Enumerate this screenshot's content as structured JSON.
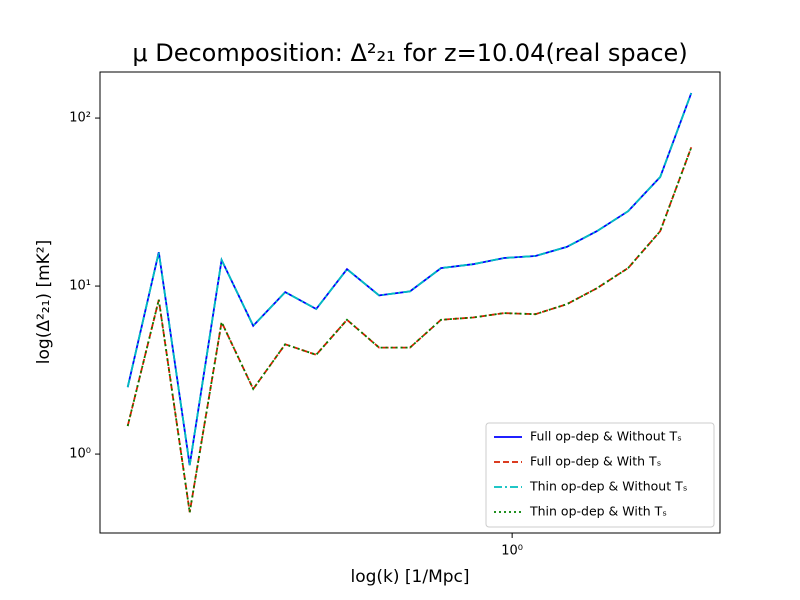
{
  "chart_data": {
    "type": "line",
    "title": "μ Decomposition: Δ²₂₁ for z=10.04(real space)",
    "x_label": "log(k) [1/Mpc]",
    "y_label": "log(Δ²₂₁) [mK²]",
    "x": [
      0.115,
      0.137,
      0.163,
      0.195,
      0.233,
      0.279,
      0.332,
      0.395,
      0.473,
      0.563,
      0.67,
      0.803,
      0.956,
      1.14,
      1.36,
      1.61,
      1.92,
      2.3,
      2.74
    ],
    "series": [
      {
        "name": "Full op-dep & Without Tₛ",
        "color": "#0000ff",
        "linestyle": "solid",
        "values": [
          2.5,
          15.9,
          0.86,
          14.3,
          5.8,
          9.2,
          7.3,
          12.6,
          8.8,
          9.3,
          12.8,
          13.5,
          14.7,
          15.1,
          17.1,
          21.2,
          27.9,
          44.6,
          141
        ]
      },
      {
        "name": "Full op-dep & With Tₛ",
        "color": "#d62000",
        "linestyle": "dashed",
        "values": [
          1.47,
          8.3,
          0.45,
          6.1,
          2.44,
          4.5,
          3.9,
          6.3,
          4.3,
          4.3,
          6.3,
          6.5,
          6.9,
          6.8,
          7.8,
          9.7,
          12.8,
          21.2,
          67
        ]
      },
      {
        "name": "Thin op-dep & Without Tₛ",
        "color": "#00bfbf",
        "linestyle": "dashdot",
        "values": [
          2.5,
          15.9,
          0.86,
          14.3,
          5.8,
          9.2,
          7.3,
          12.6,
          8.8,
          9.3,
          12.8,
          13.5,
          14.7,
          15.1,
          17.1,
          21.2,
          27.9,
          44.6,
          141
        ]
      },
      {
        "name": "Thin op-dep & With Tₛ",
        "color": "#008000",
        "linestyle": "dotted",
        "values": [
          1.47,
          8.3,
          0.45,
          6.1,
          2.44,
          4.5,
          3.9,
          6.3,
          4.3,
          4.3,
          6.3,
          6.5,
          6.9,
          6.8,
          7.8,
          9.7,
          12.8,
          21.2,
          67
        ]
      }
    ],
    "xlim": [
      0.0984,
      3.22
    ],
    "ylim": [
      0.339,
      188
    ],
    "xticks": [
      {
        "value": 1,
        "label": "10⁰"
      }
    ],
    "yticks": [
      {
        "value": 1,
        "label": "10⁰"
      },
      {
        "value": 10,
        "label": "10¹"
      },
      {
        "value": 100,
        "label": "10²"
      }
    ],
    "xscale": "log",
    "yscale": "log",
    "grid": false,
    "legend": "lower right"
  }
}
